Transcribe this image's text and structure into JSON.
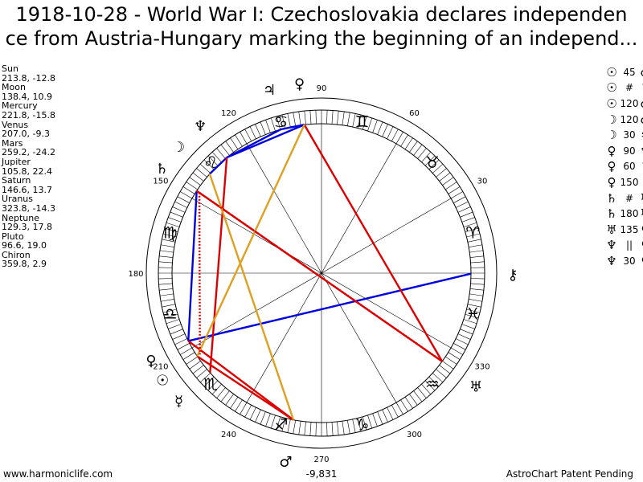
{
  "title_line1": "1918-10-28 - World War I: Czechoslovakia declares independen",
  "title_line2": "ce from Austria-Hungary marking the beginning of an independ...",
  "planets": [
    {
      "name": "Sun",
      "coords": "213.8, -12.8"
    },
    {
      "name": "Moon",
      "coords": "138.4, 10.9"
    },
    {
      "name": "Mercury",
      "coords": "221.8, -15.8"
    },
    {
      "name": "Venus",
      "coords": "207.0, -9.3"
    },
    {
      "name": "Mars",
      "coords": "259.2, -24.2"
    },
    {
      "name": "Jupiter",
      "coords": "105.8, 22.4"
    },
    {
      "name": "Saturn",
      "coords": "146.6, 13.7"
    },
    {
      "name": "Uranus",
      "coords": "323.8, -14.3"
    },
    {
      "name": "Neptune",
      "coords": "129.3, 17.8"
    },
    {
      "name": "Pluto",
      "coords": "96.6, 19.0"
    },
    {
      "name": "Chiron",
      "coords": "359.8, 2.9"
    }
  ],
  "aspects": [
    {
      "p1": "☉",
      "a": "45",
      "p2": "♂"
    },
    {
      "p1": "☉",
      "a": "#",
      "p2": "♄"
    },
    {
      "p1": "☉",
      "a": "120",
      "p2": "♂"
    },
    {
      "p1": "☽",
      "a": "120",
      "p2": "♂"
    },
    {
      "p1": "☽",
      "a": "30",
      "p2": "♃"
    },
    {
      "p1": "♀",
      "a": "90",
      "p2": "♆"
    },
    {
      "p1": "♀",
      "a": "60",
      "p2": "♄"
    },
    {
      "p1": "♀",
      "a": "150",
      "p2": "⚷"
    },
    {
      "p1": "♄",
      "a": "#",
      "p2": "♅"
    },
    {
      "p1": "♄",
      "a": "180",
      "p2": "♅"
    },
    {
      "p1": "♅",
      "a": "135",
      "p2": "♀"
    },
    {
      "p1": "♆",
      "a": "||",
      "p2": "♀"
    },
    {
      "p1": "♆",
      "a": "30",
      "p2": "♀"
    }
  ],
  "wheel": {
    "degree_labels": [
      {
        "deg": 90,
        "text": "90"
      },
      {
        "deg": 60,
        "text": "60"
      },
      {
        "deg": 30,
        "text": "30"
      },
      {
        "deg": 120,
        "text": "120"
      },
      {
        "deg": 150,
        "text": "150"
      },
      {
        "deg": 180,
        "text": "180"
      },
      {
        "deg": 210,
        "text": "210"
      },
      {
        "deg": 240,
        "text": "240"
      },
      {
        "deg": 270,
        "text": "270"
      },
      {
        "deg": 300,
        "text": "300"
      },
      {
        "deg": 330,
        "text": "330"
      }
    ],
    "zodiac": [
      {
        "deg": 15,
        "glyph": "♈"
      },
      {
        "deg": 45,
        "glyph": "♉"
      },
      {
        "deg": 75,
        "glyph": "♊"
      },
      {
        "deg": 105,
        "glyph": "♋"
      },
      {
        "deg": 135,
        "glyph": "♌"
      },
      {
        "deg": 165,
        "glyph": "♍"
      },
      {
        "deg": 195,
        "glyph": "♎"
      },
      {
        "deg": 225,
        "glyph": "♏"
      },
      {
        "deg": 255,
        "glyph": "♐"
      },
      {
        "deg": 285,
        "glyph": "♑"
      },
      {
        "deg": 315,
        "glyph": "♒"
      },
      {
        "deg": 345,
        "glyph": "♓"
      }
    ],
    "bodies": [
      {
        "name": "Sun",
        "glyph": "☉",
        "deg": 213.8
      },
      {
        "name": "Moon",
        "glyph": "☽",
        "deg": 138.4
      },
      {
        "name": "Mercury",
        "glyph": "☿",
        "deg": 221.8
      },
      {
        "name": "Venus",
        "glyph": "♀",
        "deg": 207.0
      },
      {
        "name": "Mars",
        "glyph": "♂",
        "deg": 259.2
      },
      {
        "name": "Jupiter",
        "glyph": "♃",
        "deg": 105.8
      },
      {
        "name": "Saturn",
        "glyph": "♄",
        "deg": 146.6
      },
      {
        "name": "Uranus",
        "glyph": "♅",
        "deg": 323.8
      },
      {
        "name": "Neptune",
        "glyph": "♆",
        "deg": 129.3
      },
      {
        "name": "Pluto",
        "glyph": "♀",
        "deg": 96.6
      },
      {
        "name": "Chiron",
        "glyph": "⚷",
        "deg": 359.8
      }
    ],
    "aspect_lines": [
      {
        "a": 96.6,
        "b": 105.8,
        "color": "#0000dd"
      },
      {
        "a": 96.6,
        "b": 129.3,
        "color": "#0000dd"
      },
      {
        "a": 105.8,
        "b": 129.3,
        "color": "#0000dd"
      },
      {
        "a": 129.3,
        "b": 138.4,
        "color": "#0000dd"
      },
      {
        "a": 146.6,
        "b": 207.0,
        "color": "#0000dd"
      },
      {
        "a": 207.0,
        "b": 359.8,
        "color": "#0000dd"
      },
      {
        "a": 96.6,
        "b": 323.8,
        "color": "#dd0000"
      },
      {
        "a": 146.6,
        "b": 323.8,
        "color": "#dd0000"
      },
      {
        "a": 129.3,
        "b": 221.8,
        "color": "#dd0000"
      },
      {
        "a": 213.8,
        "b": 259.2,
        "color": "#dd0000"
      },
      {
        "a": 207.0,
        "b": 259.2,
        "color": "#dd0000"
      },
      {
        "a": 96.6,
        "b": 213.8,
        "color": "#dda020"
      },
      {
        "a": 138.4,
        "b": 259.2,
        "color": "#dda020"
      },
      {
        "a": 146.6,
        "b": 323.8,
        "color": "#dd0000",
        "dotted": true
      },
      {
        "a": 146.6,
        "b": 213.8,
        "color": "#dd0000",
        "dotted": true
      }
    ],
    "house_axes": [
      0,
      30,
      60,
      90,
      120,
      150
    ]
  },
  "bottom_value": "-9,831",
  "footer_left": "www.harmoniclife.com",
  "footer_right": "AstroChart Patent Pending"
}
